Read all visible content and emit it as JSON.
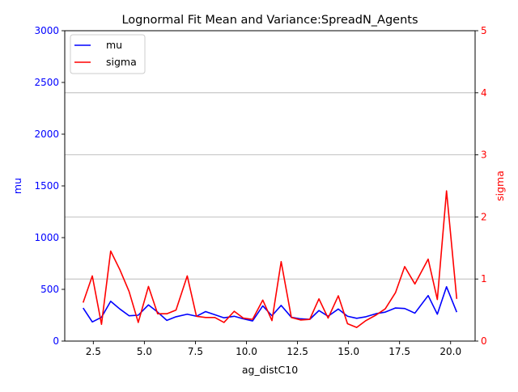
{
  "chart_data": {
    "type": "line",
    "title": "Lognormal Fit Mean and Variance:SpreadN_Agents",
    "xlabel": "ag_distC10",
    "ylabel_left": "mu",
    "ylabel_right": "sigma",
    "xlim": [
      1.1,
      21.2
    ],
    "ylim_left": [
      0,
      3000
    ],
    "ylim_right": [
      0,
      5
    ],
    "x_ticks": [
      2.5,
      5.0,
      7.5,
      10.0,
      12.5,
      15.0,
      17.5,
      20.0
    ],
    "x_tick_labels": [
      "2.5",
      "5.0",
      "7.5",
      "10.0",
      "12.5",
      "15.0",
      "17.5",
      "20.0"
    ],
    "y_left_ticks": [
      0,
      500,
      1000,
      1500,
      2000,
      2500,
      3000
    ],
    "y_left_tick_labels": [
      "0",
      "500",
      "1000",
      "1500",
      "2000",
      "2500",
      "3000"
    ],
    "y_right_ticks": [
      0,
      1,
      2,
      3,
      4,
      5
    ],
    "y_right_tick_labels": [
      "0",
      "1",
      "2",
      "3",
      "4",
      "5"
    ],
    "grid": "horizontal lines at right-axis ticks",
    "legend_position": "upper-left",
    "x": [
      2.0,
      2.45,
      2.9,
      3.35,
      3.8,
      4.25,
      4.7,
      5.2,
      5.65,
      6.1,
      6.55,
      7.1,
      7.55,
      8.0,
      8.45,
      8.9,
      9.4,
      9.85,
      10.3,
      10.8,
      11.25,
      11.7,
      12.2,
      12.65,
      13.1,
      13.55,
      14.0,
      14.5,
      14.95,
      15.4,
      15.85,
      16.35,
      16.8,
      17.3,
      17.75,
      18.25,
      18.9,
      19.35,
      19.8,
      20.3
    ],
    "series": [
      {
        "name": "mu",
        "axis": "left",
        "color": "#0000ff",
        "values": [
          320,
          185,
          230,
          385,
          310,
          245,
          250,
          350,
          280,
          200,
          235,
          260,
          240,
          285,
          255,
          225,
          240,
          215,
          195,
          340,
          245,
          345,
          230,
          215,
          210,
          295,
          240,
          310,
          240,
          220,
          235,
          265,
          280,
          320,
          315,
          270,
          440,
          260,
          525,
          280
        ]
      },
      {
        "name": "sigma",
        "axis": "right",
        "color": "#ff0000",
        "values": [
          0.62,
          1.05,
          0.27,
          1.45,
          1.15,
          0.8,
          0.3,
          0.88,
          0.44,
          0.44,
          0.5,
          1.05,
          0.4,
          0.38,
          0.38,
          0.3,
          0.48,
          0.37,
          0.35,
          0.66,
          0.33,
          1.28,
          0.38,
          0.34,
          0.35,
          0.68,
          0.37,
          0.73,
          0.28,
          0.22,
          0.33,
          0.42,
          0.52,
          0.78,
          1.2,
          0.92,
          1.32,
          0.67,
          2.42,
          0.68
        ]
      }
    ]
  }
}
